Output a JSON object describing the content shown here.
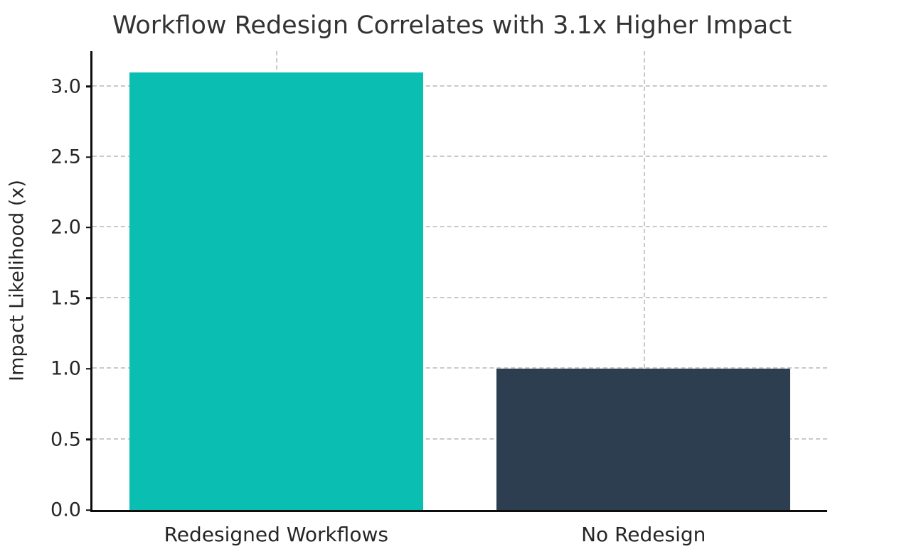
{
  "chart_data": {
    "type": "bar",
    "title": "Workflow Redesign Correlates with 3.1x Higher Impact",
    "xlabel": "",
    "ylabel": "Impact Likelihood (x)",
    "categories": [
      "Redesigned Workflows",
      "No Redesign"
    ],
    "values": [
      3.1,
      1.0
    ],
    "bar_colors": [
      "#0abfb2",
      "#2c3e50"
    ],
    "bar_width_fraction": 0.8,
    "ylim": [
      0,
      3.25
    ],
    "yticks": [
      0.0,
      0.5,
      1.0,
      1.5,
      2.0,
      2.5,
      3.0
    ],
    "ytick_labels": [
      "0.0",
      "0.5",
      "1.0",
      "1.5",
      "2.0",
      "2.5",
      "3.0"
    ],
    "grid": "dashed",
    "grid_color": "#c9c9c9",
    "axis_color": "#0d0d0d",
    "title_color": "#333333",
    "tick_color": "#262626",
    "legend": "none"
  }
}
